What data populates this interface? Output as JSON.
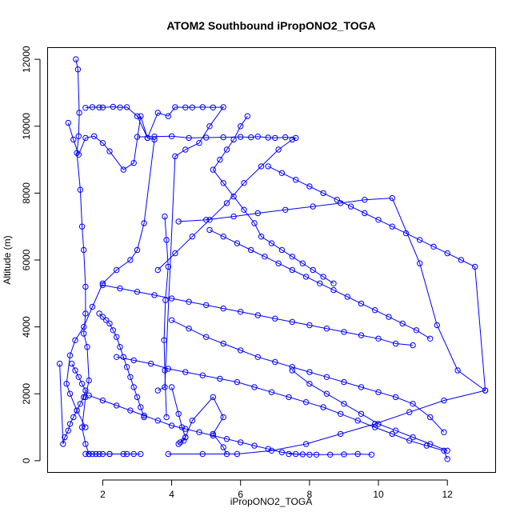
{
  "chart_data": {
    "type": "line",
    "title": "ATOM2 Southbound iPropONO2_TOGA",
    "xlabel": "iPropONO2_TOGA",
    "ylabel": "Altitude (m)",
    "xlim": [
      0.4,
      13.4
    ],
    "ylim": [
      -350,
      12350
    ],
    "xticks": [
      2,
      4,
      6,
      8,
      10,
      12
    ],
    "yticks": [
      0,
      2000,
      4000,
      6000,
      8000,
      10000,
      12000
    ],
    "grid": false,
    "legend": "none",
    "markers": "open-circle",
    "color": "#0000ff",
    "series": [
      {
        "x": [
          1.22,
          1.28,
          1.32,
          1.3,
          1.25,
          1.35,
          1.4,
          1.45,
          1.5,
          1.5,
          1.45,
          1.55,
          1.6,
          1.5,
          1.4,
          1.5,
          1.6,
          1.7,
          1.8,
          2.0,
          2.2,
          2.6,
          2.9,
          3.1,
          2.7,
          2.2,
          1.9,
          1.6,
          1.5
        ],
        "y": [
          12000,
          11700,
          10400,
          9700,
          9200,
          8100,
          7000,
          6300,
          5200,
          4400,
          3800,
          3400,
          2400,
          1900,
          1000,
          500,
          200,
          200,
          200,
          200,
          200,
          200,
          200,
          200,
          200,
          200,
          200,
          200,
          200
        ]
      },
      {
        "x": [
          1.0,
          1.15,
          1.3,
          1.5,
          1.75,
          2.0,
          2.2,
          2.6,
          2.9,
          3.1,
          3.3,
          3.5,
          3.2,
          3.0,
          2.8,
          2.4,
          2.0,
          1.7,
          1.45,
          1.2,
          1.05,
          0.95,
          1.05,
          1.25,
          1.5
        ],
        "y": [
          10100,
          9600,
          9150,
          9650,
          9700,
          9500,
          9250,
          8700,
          8900,
          10300,
          9650,
          9600,
          7100,
          6300,
          6000,
          5700,
          5300,
          4600,
          4000,
          3600,
          3150,
          2300,
          2000,
          1500,
          1000
        ]
      },
      {
        "x": [
          1.5,
          1.7,
          1.9,
          2.0,
          2.3,
          2.5,
          2.7,
          3.0,
          3.3,
          3.6,
          3.9,
          4.1,
          4.4,
          4.6,
          4.9,
          5.2,
          5.5,
          5.1,
          4.8,
          4.4,
          4.1,
          3.8,
          3.6
        ],
        "y": [
          10550,
          10570,
          10560,
          10560,
          10580,
          10560,
          10570,
          10300,
          9650,
          10400,
          10300,
          10570,
          10560,
          10560,
          10570,
          10560,
          10570,
          10000,
          9500,
          9300,
          9100,
          2200,
          2100
        ]
      },
      {
        "x": [
          3.0,
          3.5,
          4.0,
          4.5,
          5.0,
          5.5,
          6.0,
          6.3,
          6.5,
          6.8,
          7.0,
          7.3,
          7.6,
          7.5,
          7.1,
          6.6,
          6.1,
          5.6,
          5.1,
          4.6,
          4.1,
          3.6
        ],
        "y": [
          9680,
          9690,
          9700,
          9650,
          9660,
          9670,
          9680,
          9670,
          9690,
          9660,
          9650,
          9670,
          9650,
          9600,
          9300,
          8800,
          8300,
          7700,
          7200,
          6700,
          6200,
          5700
        ]
      },
      {
        "x": [
          4.2,
          5.0,
          5.8,
          6.5,
          7.3,
          8.1,
          8.9,
          9.6,
          10.4,
          11.2,
          11.7,
          12.3,
          13.1,
          11.9,
          10.9,
          9.9,
          8.9,
          7.9,
          6.9,
          5.9,
          4.9,
          3.9
        ],
        "y": [
          7150,
          7200,
          7300,
          7400,
          7500,
          7600,
          7700,
          7800,
          7850,
          5900,
          4050,
          2700,
          2100,
          1800,
          1450,
          1100,
          800,
          500,
          300,
          200,
          200,
          200
        ]
      },
      {
        "x": [
          2.4,
          2.9,
          3.4,
          3.9,
          4.4,
          4.9,
          5.4,
          5.9,
          6.4,
          6.9,
          7.4,
          7.9,
          8.4,
          8.9,
          9.4,
          9.9,
          10.4,
          10.9,
          11.4,
          11.9,
          12.0
        ],
        "y": [
          3100,
          3000,
          2900,
          2750,
          2650,
          2550,
          2450,
          2350,
          2200,
          2050,
          1900,
          1750,
          1600,
          1400,
          1200,
          1000,
          800,
          600,
          450,
          300,
          50
        ]
      },
      {
        "x": [
          4.0,
          4.5,
          5.0,
          5.5,
          6.0,
          6.5,
          7.0,
          7.5,
          8.0,
          8.5,
          9.0,
          9.5,
          10.0,
          10.5,
          11.0,
          11.5,
          11.9
        ],
        "y": [
          4200,
          3950,
          3700,
          3500,
          3300,
          3100,
          2950,
          2800,
          2650,
          2500,
          2350,
          2200,
          2050,
          1900,
          1700,
          1300,
          850
        ]
      },
      {
        "x": [
          2.0,
          2.5,
          3.0,
          3.5,
          4.0,
          4.5,
          5.0,
          5.5,
          6.0,
          6.5,
          7.0,
          7.5,
          8.0,
          8.5,
          9.0,
          9.5,
          10.0,
          10.5,
          11.0
        ],
        "y": [
          5250,
          5150,
          5050,
          4950,
          4850,
          4750,
          4650,
          4550,
          4450,
          4350,
          4250,
          4150,
          4050,
          3950,
          3850,
          3750,
          3650,
          3500,
          3450
        ]
      },
      {
        "x": [
          5.1,
          5.5,
          5.9,
          6.3,
          6.7,
          7.1,
          7.5,
          7.9,
          8.3,
          8.7,
          9.1,
          9.5,
          9.9,
          10.3,
          10.7,
          11.1,
          11.5
        ],
        "y": [
          6900,
          6700,
          6500,
          6300,
          6100,
          5900,
          5700,
          5500,
          5300,
          5100,
          4900,
          4700,
          4500,
          4300,
          4100,
          3900,
          3650
        ]
      },
      {
        "x": [
          1.6,
          2.0,
          2.4,
          2.8,
          3.2,
          3.6,
          4.0,
          4.4,
          4.8,
          5.2,
          5.6,
          6.0,
          6.4,
          6.8,
          7.2,
          7.6,
          8.0
        ],
        "y": [
          1950,
          1800,
          1650,
          1500,
          1350,
          1200,
          1050,
          950,
          850,
          750,
          650,
          550,
          450,
          350,
          250,
          200,
          180
        ]
      },
      {
        "x": [
          4.0,
          4.2,
          4.3,
          4.4,
          4.35,
          4.25,
          4.2,
          4.4,
          4.6,
          5.2,
          5.5,
          5.2,
          5.5,
          5.6
        ],
        "y": [
          2200,
          1400,
          1000,
          700,
          600,
          550,
          500,
          700,
          1200,
          1900,
          1300,
          800,
          400,
          200
        ]
      },
      {
        "x": [
          3.8,
          3.85,
          3.9,
          3.82,
          3.78,
          3.8,
          3.85
        ],
        "y": [
          7300,
          6600,
          5800,
          4800,
          3600,
          2700,
          1300
        ]
      },
      {
        "x": [
          6.2,
          6.0,
          5.8,
          5.6,
          5.4,
          5.2,
          5.5,
          5.8,
          6.1,
          6.4,
          6.6,
          6.9,
          7.2,
          7.5,
          7.8,
          8.1,
          8.4,
          8.7
        ],
        "y": [
          10300,
          10000,
          9600,
          9300,
          9000,
          8700,
          8300,
          7900,
          7500,
          7100,
          6700,
          6500,
          6300,
          6100,
          5900,
          5700,
          5500,
          5300
        ]
      },
      {
        "x": [
          6.8,
          7.2,
          7.6,
          8.0,
          8.4,
          8.8,
          9.2,
          9.6,
          10.0,
          10.4,
          10.8,
          11.2,
          11.6,
          12.0,
          12.4,
          12.8,
          13.1
        ],
        "y": [
          8800,
          8600,
          8400,
          8200,
          8000,
          7800,
          7600,
          7400,
          7200,
          7000,
          6800,
          6600,
          6400,
          6200,
          6000,
          5800,
          2100
        ]
      },
      {
        "x": [
          1.1,
          1.2,
          1.3,
          1.4,
          1.5,
          1.45,
          1.35,
          1.25,
          1.15,
          1.05,
          1.0,
          0.9,
          0.85,
          0.75
        ],
        "y": [
          2900,
          2700,
          2500,
          2300,
          2100,
          1900,
          1700,
          1500,
          1300,
          1100,
          900,
          700,
          500,
          2900
        ]
      },
      {
        "x": [
          1.9,
          2.0,
          2.1,
          2.2,
          2.3,
          2.4,
          2.5,
          2.6,
          2.7,
          2.8,
          2.9,
          3.0,
          3.1,
          3.2
        ],
        "y": [
          4400,
          4300,
          4200,
          4100,
          3900,
          3700,
          3400,
          3100,
          2800,
          2500,
          2200,
          1900,
          1600,
          1300
        ]
      },
      {
        "x": [
          7.5,
          8.0,
          8.5,
          9.0,
          9.5,
          10.0,
          10.5,
          11.0,
          11.5,
          12.0
        ],
        "y": [
          2700,
          2300,
          2000,
          1700,
          1400,
          1100,
          900,
          700,
          500,
          300
        ]
      },
      {
        "x": [
          7.4,
          7.8,
          8.2,
          8.6,
          9.0,
          9.4,
          9.8
        ],
        "y": [
          200,
          190,
          180,
          180,
          190,
          200,
          180
        ]
      }
    ]
  }
}
